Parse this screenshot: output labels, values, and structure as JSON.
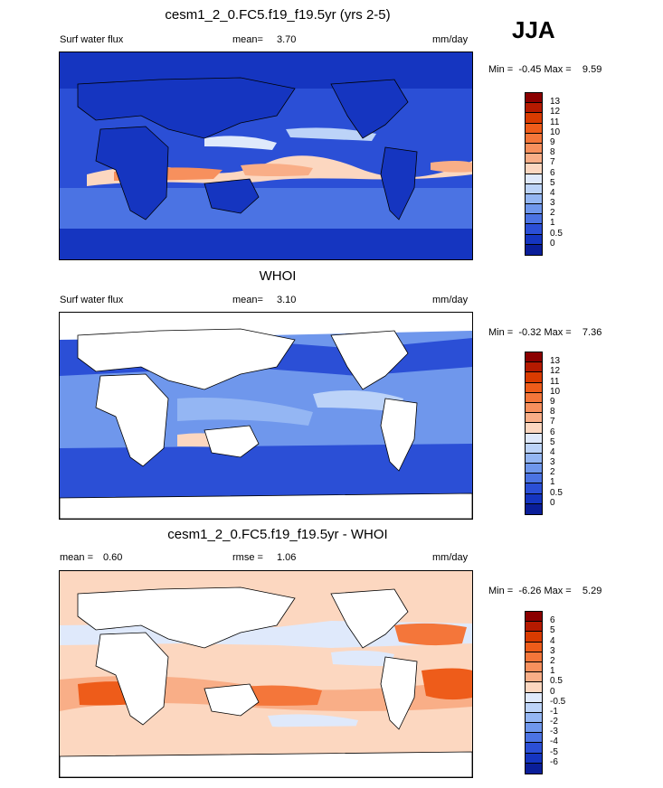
{
  "season": "JJA",
  "panels": [
    {
      "title": "cesm1_2_0.FC5.f19_f19.5yr (yrs 2-5)",
      "left_label": "Surf water flux",
      "stat_label": "mean=",
      "stat_value": "3.70",
      "units": "mm/day",
      "minmax": "Min =  -0.45 Max =    9.59",
      "colorbar": {
        "labels": [
          "13",
          "12",
          "11",
          "10",
          "9",
          "8",
          "7",
          "6",
          "5",
          "4",
          "3",
          "2",
          "1",
          "0.5",
          "0"
        ],
        "colors": [
          "#8b0000",
          "#b51a00",
          "#d93b00",
          "#ee5c1a",
          "#f4763a",
          "#f7905d",
          "#f9ae87",
          "#fcd7c0",
          "#dfe9fb",
          "#bcd3f8",
          "#94b6f3",
          "#6f97ec",
          "#4b73e3",
          "#2b4fd6",
          "#1535c0",
          "#0a1e99"
        ]
      },
      "map_type": "model"
    },
    {
      "title": "WHOI",
      "left_label": "Surf water flux",
      "stat_label": "mean=",
      "stat_value": "3.10",
      "units": "mm/day",
      "minmax": "Min =  -0.32 Max =    7.36",
      "colorbar": {
        "labels": [
          "13",
          "12",
          "11",
          "10",
          "9",
          "8",
          "7",
          "6",
          "5",
          "4",
          "3",
          "2",
          "1",
          "0.5",
          "0"
        ],
        "colors": [
          "#8b0000",
          "#b51a00",
          "#d93b00",
          "#ee5c1a",
          "#f4763a",
          "#f7905d",
          "#f9ae87",
          "#fcd7c0",
          "#dfe9fb",
          "#bcd3f8",
          "#94b6f3",
          "#6f97ec",
          "#4b73e3",
          "#2b4fd6",
          "#1535c0",
          "#0a1e99"
        ]
      },
      "map_type": "obs"
    },
    {
      "title": "cesm1_2_0.FC5.f19_f19.5yr - WHOI",
      "left_label": "mean =",
      "left_value": "0.60",
      "stat_label": "rmse =",
      "stat_value": "1.06",
      "units": "mm/day",
      "minmax": "Min =  -6.26 Max =    5.29",
      "colorbar": {
        "labels": [
          "6",
          "5",
          "4",
          "3",
          "2",
          "1",
          "0.5",
          "0",
          "-0.5",
          "-1",
          "-2",
          "-3",
          "-4",
          "-5",
          "-6"
        ],
        "colors": [
          "#8b0000",
          "#b51a00",
          "#d93b00",
          "#ee5c1a",
          "#f4763a",
          "#f7905d",
          "#f9ae87",
          "#fcd7c0",
          "#dfe9fb",
          "#bcd3f8",
          "#94b6f3",
          "#6f97ec",
          "#4b73e3",
          "#2b4fd6",
          "#1535c0",
          "#0a1e99"
        ]
      },
      "map_type": "diff"
    }
  ]
}
